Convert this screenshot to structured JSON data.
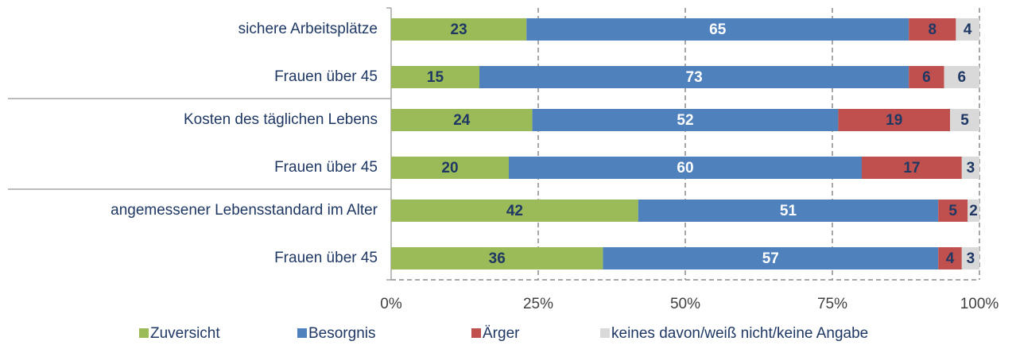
{
  "chart_data": {
    "type": "stacked_barh",
    "categories": [
      "sichere Arbeitsplätze",
      "Frauen über 45",
      "Kosten des täglichen Lebens",
      "Frauen über 45",
      "angemessener Lebensstandard im Alter",
      "Frauen über 45"
    ],
    "series": [
      {
        "name": "Zuversicht",
        "color": "#9bbb59",
        "label_color": "#1f3864",
        "values": [
          23,
          15,
          24,
          20,
          42,
          36
        ]
      },
      {
        "name": "Besorgnis",
        "color": "#4f81bd",
        "label_color": "#ffffff",
        "values": [
          65,
          73,
          52,
          60,
          51,
          57
        ]
      },
      {
        "name": "Ärger",
        "color": "#c0504d",
        "label_color": "#1f3864",
        "values": [
          8,
          6,
          19,
          17,
          5,
          4
        ]
      },
      {
        "name": "keines davon/weiß nicht/keine Angabe",
        "color": "#d9d9d9",
        "label_color": "#1f3864",
        "values": [
          4,
          6,
          5,
          3,
          2,
          3
        ]
      }
    ],
    "xlim": [
      0,
      100
    ],
    "xticks": [
      {
        "value": 0,
        "label": "0%"
      },
      {
        "value": 25,
        "label": "25%"
      },
      {
        "value": 50,
        "label": "50%"
      },
      {
        "value": 75,
        "label": "75%"
      },
      {
        "value": 100,
        "label": "100%"
      }
    ],
    "grid": true,
    "legend": "bottom"
  }
}
